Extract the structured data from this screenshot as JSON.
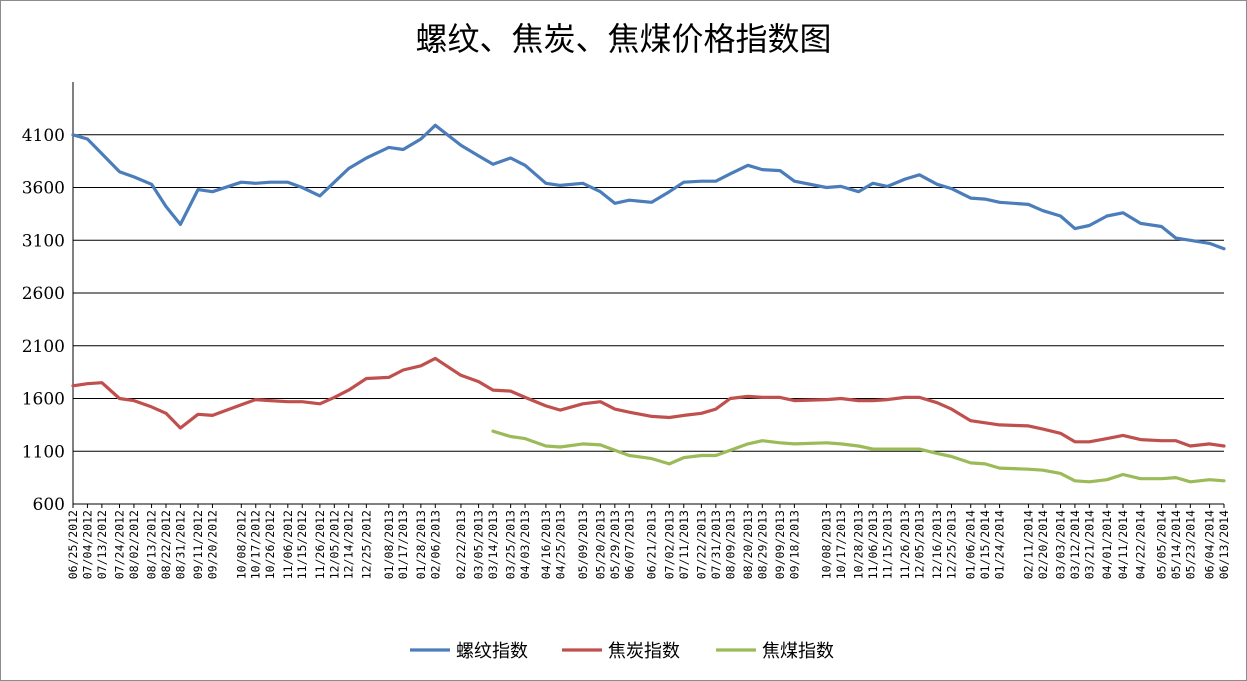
{
  "chart_data": {
    "type": "line",
    "title": "螺纹、焦炭、焦煤价格指数图",
    "ylim": [
      600,
      4600
    ],
    "yticks": [
      600,
      1100,
      1600,
      2100,
      2600,
      3100,
      3600,
      4100
    ],
    "grid": "horizontal",
    "legend_position": "bottom",
    "x_range": [
      "06/25/2012",
      "06/13/2014"
    ],
    "x_tick_labels": [
      "06/25/2012",
      "07/04/2012",
      "07/13/2012",
      "07/24/2012",
      "08/02/2012",
      "08/13/2012",
      "08/22/2012",
      "08/31/2012",
      "09/11/2012",
      "09/20/2012",
      "10/08/2012",
      "10/17/2012",
      "10/26/2012",
      "11/06/2012",
      "11/15/2012",
      "11/26/2012",
      "12/05/2012",
      "12/14/2012",
      "12/25/2012",
      "01/08/2013",
      "01/17/2013",
      "01/28/2013",
      "02/06/2013",
      "02/22/2013",
      "03/05/2013",
      "03/14/2013",
      "03/25/2013",
      "04/03/2013",
      "04/16/2013",
      "04/25/2013",
      "05/09/2013",
      "05/20/2013",
      "05/29/2013",
      "06/07/2013",
      "06/21/2013",
      "07/02/2013",
      "07/11/2013",
      "07/22/2013",
      "07/31/2013",
      "08/09/2013",
      "08/20/2013",
      "08/29/2013",
      "09/09/2013",
      "09/18/2013",
      "10/08/2013",
      "10/17/2013",
      "10/28/2013",
      "11/06/2013",
      "11/15/2013",
      "11/26/2013",
      "12/05/2013",
      "12/16/2013",
      "12/25/2013",
      "01/06/2014",
      "01/15/2014",
      "01/24/2014",
      "02/11/2014",
      "02/20/2014",
      "03/03/2014",
      "03/12/2014",
      "03/21/2014",
      "04/01/2014",
      "04/11/2014",
      "04/22/2014",
      "05/05/2014",
      "05/14/2014",
      "05/23/2014",
      "06/04/2014",
      "06/13/2014"
    ],
    "series": [
      {
        "name": "螺纹指数",
        "color": "#4a7dba",
        "points": [
          [
            "06/25/2012",
            4100
          ],
          [
            "07/04/2012",
            4060
          ],
          [
            "07/13/2012",
            3920
          ],
          [
            "07/24/2012",
            3750
          ],
          [
            "08/02/2012",
            3700
          ],
          [
            "08/13/2012",
            3630
          ],
          [
            "08/22/2012",
            3420
          ],
          [
            "08/31/2012",
            3250
          ],
          [
            "09/11/2012",
            3580
          ],
          [
            "09/20/2012",
            3560
          ],
          [
            "10/08/2012",
            3650
          ],
          [
            "10/17/2012",
            3640
          ],
          [
            "10/26/2012",
            3650
          ],
          [
            "11/06/2012",
            3650
          ],
          [
            "11/15/2012",
            3600
          ],
          [
            "11/26/2012",
            3520
          ],
          [
            "12/05/2012",
            3650
          ],
          [
            "12/14/2012",
            3780
          ],
          [
            "12/25/2012",
            3880
          ],
          [
            "01/08/2013",
            3980
          ],
          [
            "01/17/2013",
            3960
          ],
          [
            "01/28/2013",
            4060
          ],
          [
            "02/06/2013",
            4190
          ],
          [
            "02/22/2013",
            4000
          ],
          [
            "03/05/2013",
            3900
          ],
          [
            "03/14/2013",
            3820
          ],
          [
            "03/25/2013",
            3880
          ],
          [
            "04/03/2013",
            3810
          ],
          [
            "04/16/2013",
            3640
          ],
          [
            "04/25/2013",
            3620
          ],
          [
            "05/09/2013",
            3640
          ],
          [
            "05/20/2013",
            3560
          ],
          [
            "05/29/2013",
            3450
          ],
          [
            "06/07/2013",
            3480
          ],
          [
            "06/21/2013",
            3460
          ],
          [
            "07/02/2013",
            3560
          ],
          [
            "07/11/2013",
            3650
          ],
          [
            "07/22/2013",
            3660
          ],
          [
            "07/31/2013",
            3660
          ],
          [
            "08/09/2013",
            3730
          ],
          [
            "08/20/2013",
            3810
          ],
          [
            "08/29/2013",
            3770
          ],
          [
            "09/09/2013",
            3760
          ],
          [
            "09/18/2013",
            3660
          ],
          [
            "10/08/2013",
            3600
          ],
          [
            "10/17/2013",
            3610
          ],
          [
            "10/28/2013",
            3560
          ],
          [
            "11/06/2013",
            3640
          ],
          [
            "11/15/2013",
            3610
          ],
          [
            "11/26/2013",
            3680
          ],
          [
            "12/05/2013",
            3720
          ],
          [
            "12/16/2013",
            3630
          ],
          [
            "12/25/2013",
            3590
          ],
          [
            "01/06/2014",
            3500
          ],
          [
            "01/15/2014",
            3490
          ],
          [
            "01/24/2014",
            3460
          ],
          [
            "02/11/2014",
            3440
          ],
          [
            "02/20/2014",
            3380
          ],
          [
            "03/03/2014",
            3330
          ],
          [
            "03/12/2014",
            3210
          ],
          [
            "03/21/2014",
            3240
          ],
          [
            "04/01/2014",
            3330
          ],
          [
            "04/11/2014",
            3360
          ],
          [
            "04/22/2014",
            3260
          ],
          [
            "05/05/2014",
            3230
          ],
          [
            "05/14/2014",
            3120
          ],
          [
            "05/23/2014",
            3100
          ],
          [
            "06/04/2014",
            3070
          ],
          [
            "06/13/2014",
            3020
          ]
        ]
      },
      {
        "name": "焦炭指数",
        "color": "#c0504d",
        "points": [
          [
            "06/25/2012",
            1720
          ],
          [
            "07/04/2012",
            1740
          ],
          [
            "07/13/2012",
            1750
          ],
          [
            "07/24/2012",
            1600
          ],
          [
            "08/02/2012",
            1580
          ],
          [
            "08/13/2012",
            1520
          ],
          [
            "08/22/2012",
            1460
          ],
          [
            "08/31/2012",
            1320
          ],
          [
            "09/11/2012",
            1450
          ],
          [
            "09/20/2012",
            1440
          ],
          [
            "10/08/2012",
            1540
          ],
          [
            "10/17/2012",
            1590
          ],
          [
            "10/26/2012",
            1580
          ],
          [
            "11/06/2012",
            1570
          ],
          [
            "11/15/2012",
            1570
          ],
          [
            "11/26/2012",
            1550
          ],
          [
            "12/05/2012",
            1610
          ],
          [
            "12/14/2012",
            1680
          ],
          [
            "12/25/2012",
            1790
          ],
          [
            "01/08/2013",
            1800
          ],
          [
            "01/17/2013",
            1870
          ],
          [
            "01/28/2013",
            1910
          ],
          [
            "02/06/2013",
            1980
          ],
          [
            "02/22/2013",
            1820
          ],
          [
            "03/05/2013",
            1760
          ],
          [
            "03/14/2013",
            1680
          ],
          [
            "03/25/2013",
            1670
          ],
          [
            "04/03/2013",
            1610
          ],
          [
            "04/16/2013",
            1530
          ],
          [
            "04/25/2013",
            1490
          ],
          [
            "05/09/2013",
            1550
          ],
          [
            "05/20/2013",
            1570
          ],
          [
            "05/29/2013",
            1500
          ],
          [
            "06/07/2013",
            1470
          ],
          [
            "06/21/2013",
            1430
          ],
          [
            "07/02/2013",
            1420
          ],
          [
            "07/11/2013",
            1440
          ],
          [
            "07/22/2013",
            1460
          ],
          [
            "07/31/2013",
            1500
          ],
          [
            "08/09/2013",
            1600
          ],
          [
            "08/20/2013",
            1620
          ],
          [
            "08/29/2013",
            1610
          ],
          [
            "09/09/2013",
            1610
          ],
          [
            "09/18/2013",
            1580
          ],
          [
            "10/08/2013",
            1590
          ],
          [
            "10/17/2013",
            1600
          ],
          [
            "10/28/2013",
            1580
          ],
          [
            "11/06/2013",
            1580
          ],
          [
            "11/15/2013",
            1590
          ],
          [
            "11/26/2013",
            1610
          ],
          [
            "12/05/2013",
            1610
          ],
          [
            "12/16/2013",
            1560
          ],
          [
            "12/25/2013",
            1500
          ],
          [
            "01/06/2014",
            1390
          ],
          [
            "01/15/2014",
            1370
          ],
          [
            "01/24/2014",
            1350
          ],
          [
            "02/11/2014",
            1340
          ],
          [
            "02/20/2014",
            1310
          ],
          [
            "03/03/2014",
            1270
          ],
          [
            "03/12/2014",
            1190
          ],
          [
            "03/21/2014",
            1190
          ],
          [
            "04/01/2014",
            1220
          ],
          [
            "04/11/2014",
            1250
          ],
          [
            "04/22/2014",
            1210
          ],
          [
            "05/05/2014",
            1200
          ],
          [
            "05/14/2014",
            1200
          ],
          [
            "05/23/2014",
            1150
          ],
          [
            "06/04/2014",
            1170
          ],
          [
            "06/13/2014",
            1150
          ]
        ]
      },
      {
        "name": "焦煤指数",
        "color": "#9bbb59",
        "points": [
          [
            "03/14/2013",
            1290
          ],
          [
            "03/25/2013",
            1240
          ],
          [
            "04/03/2013",
            1220
          ],
          [
            "04/16/2013",
            1150
          ],
          [
            "04/25/2013",
            1140
          ],
          [
            "05/09/2013",
            1170
          ],
          [
            "05/20/2013",
            1160
          ],
          [
            "05/29/2013",
            1110
          ],
          [
            "06/07/2013",
            1060
          ],
          [
            "06/21/2013",
            1030
          ],
          [
            "07/02/2013",
            980
          ],
          [
            "07/11/2013",
            1040
          ],
          [
            "07/22/2013",
            1060
          ],
          [
            "07/31/2013",
            1060
          ],
          [
            "08/09/2013",
            1110
          ],
          [
            "08/20/2013",
            1170
          ],
          [
            "08/29/2013",
            1200
          ],
          [
            "09/09/2013",
            1180
          ],
          [
            "09/18/2013",
            1170
          ],
          [
            "10/08/2013",
            1180
          ],
          [
            "10/17/2013",
            1170
          ],
          [
            "10/28/2013",
            1150
          ],
          [
            "11/06/2013",
            1120
          ],
          [
            "11/15/2013",
            1120
          ],
          [
            "11/26/2013",
            1120
          ],
          [
            "12/05/2013",
            1120
          ],
          [
            "12/16/2013",
            1080
          ],
          [
            "12/25/2013",
            1050
          ],
          [
            "01/06/2014",
            990
          ],
          [
            "01/15/2014",
            980
          ],
          [
            "01/24/2014",
            940
          ],
          [
            "02/11/2014",
            930
          ],
          [
            "02/20/2014",
            920
          ],
          [
            "03/03/2014",
            890
          ],
          [
            "03/12/2014",
            820
          ],
          [
            "03/21/2014",
            810
          ],
          [
            "04/01/2014",
            830
          ],
          [
            "04/11/2014",
            880
          ],
          [
            "04/22/2014",
            840
          ],
          [
            "05/05/2014",
            840
          ],
          [
            "05/14/2014",
            850
          ],
          [
            "05/23/2014",
            810
          ],
          [
            "06/04/2014",
            830
          ],
          [
            "06/13/2014",
            820
          ]
        ]
      }
    ]
  }
}
